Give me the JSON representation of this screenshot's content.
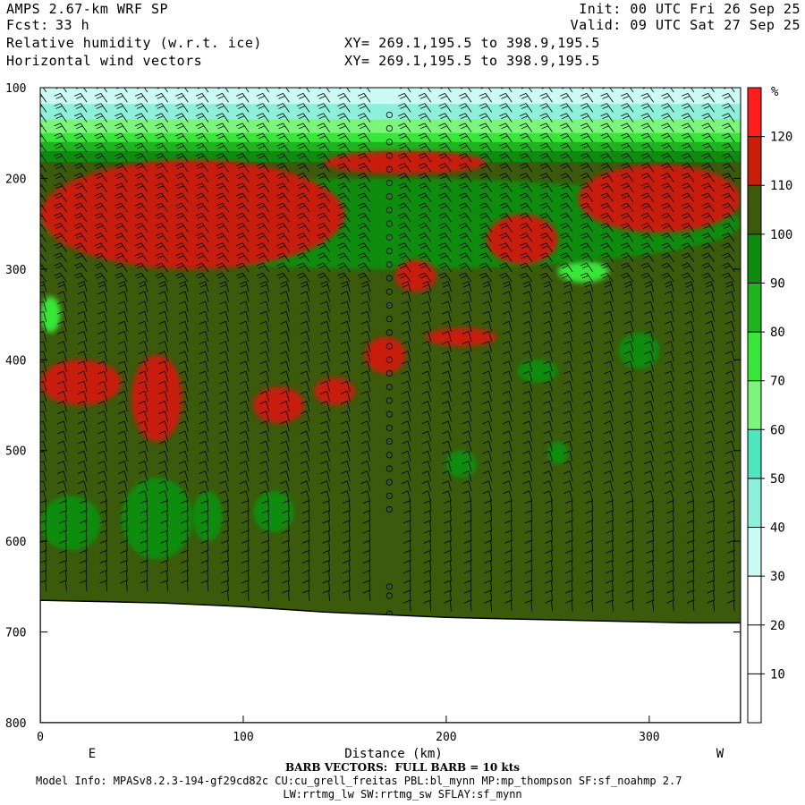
{
  "header": {
    "model": "AMPS 2.67-km WRF SP",
    "fcst_label": "Fcst:",
    "fcst_value": "33 h",
    "init": "Init: 00 UTC Fri 26 Sep 25",
    "valid": "Valid: 09 UTC Sat 27 Sep 25",
    "field1": "Relative humidity (w.r.t. ice)",
    "field2": "Horizontal wind vectors",
    "xy1": "XY= 269.1,195.5 to 398.9,195.5",
    "xy2": "XY= 269.1,195.5 to 398.9,195.5"
  },
  "footer": {
    "barb": "BARB VECTORS:  FULL BARB = 10 kts",
    "model_info_1": "Model Info: MPASv8.2.3-194-gf29cd82c CU:cu_grell_freitas PBL:bl_mynn MP:mp_thompson SF:sf_noahmp 2.7",
    "model_info_2": "LW:rrtmg_lw SW:rrtmg_sw SFLAY:sf_mynn"
  },
  "chart_data": {
    "type": "heatmap",
    "xlabel": "Distance (km)",
    "x_left_label": "E",
    "x_right_label": "W",
    "xlim": [
      0,
      345
    ],
    "x_ticks": [
      0,
      100,
      200,
      300
    ],
    "y_ticks": [
      100,
      200,
      300,
      400,
      500,
      600,
      700,
      800
    ],
    "ylim": [
      100,
      800
    ],
    "y_inverted": true,
    "colorbar": {
      "unit": "%",
      "levels": [
        10,
        20,
        30,
        40,
        50,
        60,
        70,
        80,
        90,
        100,
        110,
        120
      ],
      "colors": [
        "#ffffff",
        "#ffffff",
        "#ffffff",
        "#ccfaf4",
        "#8ef0dc",
        "#4ee6be",
        "#7bf57b",
        "#39e639",
        "#1fb41f",
        "#0f8c0f",
        "#3b5a0b",
        "#c81e0a",
        "#ff1e1e"
      ]
    },
    "background_field": "#3b5a0b",
    "terrain_pressure": [
      665,
      666,
      667,
      668,
      670,
      672,
      675,
      678,
      680,
      682,
      684,
      685,
      686,
      687,
      688,
      689,
      690,
      690
    ],
    "terrain_x": [
      0,
      20,
      40,
      60,
      80,
      100,
      120,
      140,
      160,
      180,
      200,
      220,
      240,
      260,
      280,
      300,
      320,
      345
    ],
    "wet_regions": [
      {
        "x": [
          0,
          150
        ],
        "p": [
          180,
          300
        ],
        "value": 115
      },
      {
        "x": [
          140,
          220
        ],
        "p": [
          170,
          195
        ],
        "value": 115
      },
      {
        "x": [
          265,
          345
        ],
        "p": [
          185,
          260
        ],
        "value": 115
      },
      {
        "x": [
          220,
          255
        ],
        "p": [
          240,
          295
        ],
        "value": 115
      },
      {
        "x": [
          175,
          195
        ],
        "p": [
          290,
          325
        ],
        "value": 115
      },
      {
        "x": [
          190,
          225
        ],
        "p": [
          365,
          385
        ],
        "value": 115
      },
      {
        "x": [
          0,
          40
        ],
        "p": [
          400,
          450
        ],
        "value": 115
      },
      {
        "x": [
          45,
          70
        ],
        "p": [
          395,
          490
        ],
        "value": 115
      },
      {
        "x": [
          105,
          130
        ],
        "p": [
          430,
          470
        ],
        "value": 115
      },
      {
        "x": [
          135,
          155
        ],
        "p": [
          420,
          450
        ],
        "value": 115
      },
      {
        "x": [
          160,
          180
        ],
        "p": [
          375,
          415
        ],
        "value": 115
      }
    ],
    "dry_regions": [
      {
        "x": [
          0,
          345
        ],
        "p": [
          100,
          175
        ],
        "value": 50
      },
      {
        "x": [
          0,
          10
        ],
        "p": [
          330,
          370
        ],
        "value": 75
      },
      {
        "x": [
          255,
          280
        ],
        "p": [
          290,
          315
        ],
        "value": 75
      },
      {
        "x": [
          235,
          255
        ],
        "p": [
          400,
          425
        ],
        "value": 90
      },
      {
        "x": [
          285,
          305
        ],
        "p": [
          370,
          410
        ],
        "value": 90
      },
      {
        "x": [
          0,
          30
        ],
        "p": [
          550,
          610
        ],
        "value": 90
      },
      {
        "x": [
          40,
          75
        ],
        "p": [
          530,
          620
        ],
        "value": 90
      },
      {
        "x": [
          75,
          90
        ],
        "p": [
          545,
          600
        ],
        "value": 90
      },
      {
        "x": [
          105,
          125
        ],
        "p": [
          545,
          590
        ],
        "value": 90
      },
      {
        "x": [
          200,
          215
        ],
        "p": [
          500,
          530
        ],
        "value": 90
      },
      {
        "x": [
          250,
          260
        ],
        "p": [
          490,
          515
        ],
        "value": 90
      },
      {
        "x": [
          0,
          345
        ],
        "p": [
          200,
          300
        ],
        "value": 95
      }
    ],
    "wind": {
      "calm_x": 172,
      "calm_p": [
        130,
        570
      ],
      "barb_columns": 35
    }
  }
}
